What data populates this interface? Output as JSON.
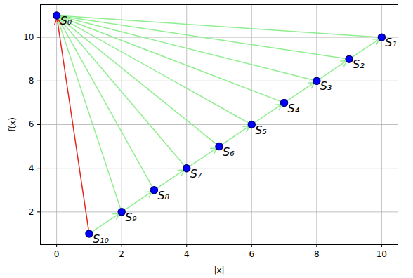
{
  "chart_data": {
    "type": "scatter",
    "x": [
      0,
      10,
      9,
      8,
      7,
      6,
      5,
      4,
      3,
      2,
      1
    ],
    "values": [
      11,
      10,
      9,
      8,
      7,
      6,
      5,
      4,
      3,
      2,
      1
    ],
    "labels": [
      "S₀",
      "S₁",
      "S₂",
      "S₃",
      "S₄",
      "S₅",
      "S₆",
      "S₇",
      "S₈",
      "S₉",
      "S₁₀"
    ],
    "color": "#0000ff",
    "marker": "circle",
    "x_label": "|x|",
    "y_label": "f(x)",
    "xlim": [
      -0.5,
      10.5
    ],
    "ylim": [
      0.5,
      11.5
    ],
    "xticks": [
      0,
      2,
      4,
      6,
      8,
      10
    ],
    "yticks": [
      2,
      4,
      6,
      8,
      10
    ],
    "grid": true
  }
}
